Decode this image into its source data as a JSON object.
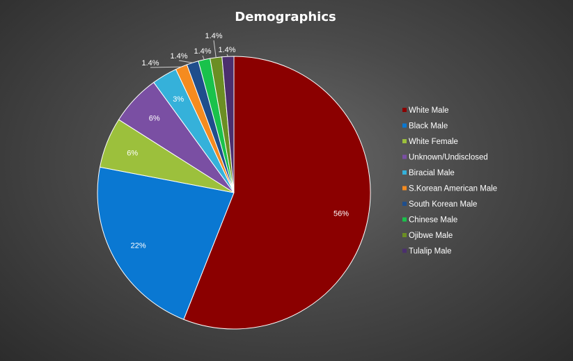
{
  "chart_data": {
    "type": "pie",
    "title": "Demographics",
    "legend_position": "right",
    "slices": [
      {
        "label": "White Male",
        "value": 56,
        "display": "56%",
        "color": "#8b0000"
      },
      {
        "label": "Black Male",
        "value": 22,
        "display": "22%",
        "color": "#0a78d2"
      },
      {
        "label": "White Female",
        "value": 6,
        "display": "6%",
        "color": "#9cc03c"
      },
      {
        "label": "Unknown/Undisclosed",
        "value": 6,
        "display": "6%",
        "color": "#7a4fa3"
      },
      {
        "label": "Biracial Male",
        "value": 3,
        "display": "3%",
        "color": "#35b1da"
      },
      {
        "label": "S.Korean American Male",
        "value": 1.4,
        "display": "1.4%",
        "color": "#f58b1f"
      },
      {
        "label": "South Korean Male",
        "value": 1.4,
        "display": "1.4%",
        "color": "#1f4e8c"
      },
      {
        "label": "Chinese Male",
        "value": 1.4,
        "display": "1.4%",
        "color": "#19c24b"
      },
      {
        "label": "Ojibwe Male",
        "value": 1.4,
        "display": "1.4%",
        "color": "#6b8e23"
      },
      {
        "label": "Tulalip Male",
        "value": 1.4,
        "display": "1.4%",
        "color": "#4b2f6e"
      }
    ]
  }
}
